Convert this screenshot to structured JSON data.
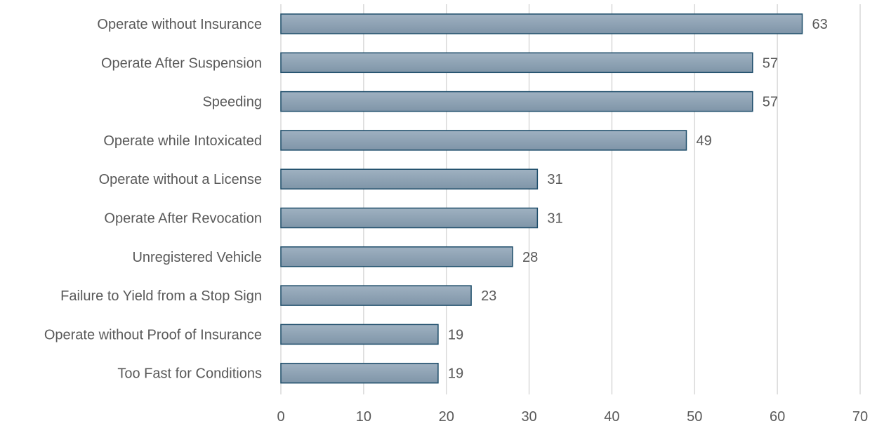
{
  "chart_data": {
    "type": "bar",
    "orientation": "horizontal",
    "categories": [
      "Operate without Insurance",
      "Operate After Suspension",
      "Speeding",
      "Operate while Intoxicated",
      "Operate without a License",
      "Operate After Revocation",
      "Unregistered Vehicle",
      "Failure to Yield from a Stop Sign",
      "Operate without Proof of Insurance",
      "Too Fast for Conditions"
    ],
    "values": [
      63,
      57,
      57,
      49,
      31,
      31,
      28,
      23,
      19,
      19
    ],
    "xlim": [
      0,
      70
    ],
    "xticks": [
      0,
      10,
      20,
      30,
      40,
      50,
      60,
      70
    ],
    "grid": true,
    "data_labels": true,
    "colors": {
      "bar_fill_top": "#9fb1c1",
      "bar_fill_bottom": "#7f95a8",
      "bar_stroke": "#1f4e6b",
      "gridline": "#d9d9d9",
      "text": "#595959"
    }
  }
}
